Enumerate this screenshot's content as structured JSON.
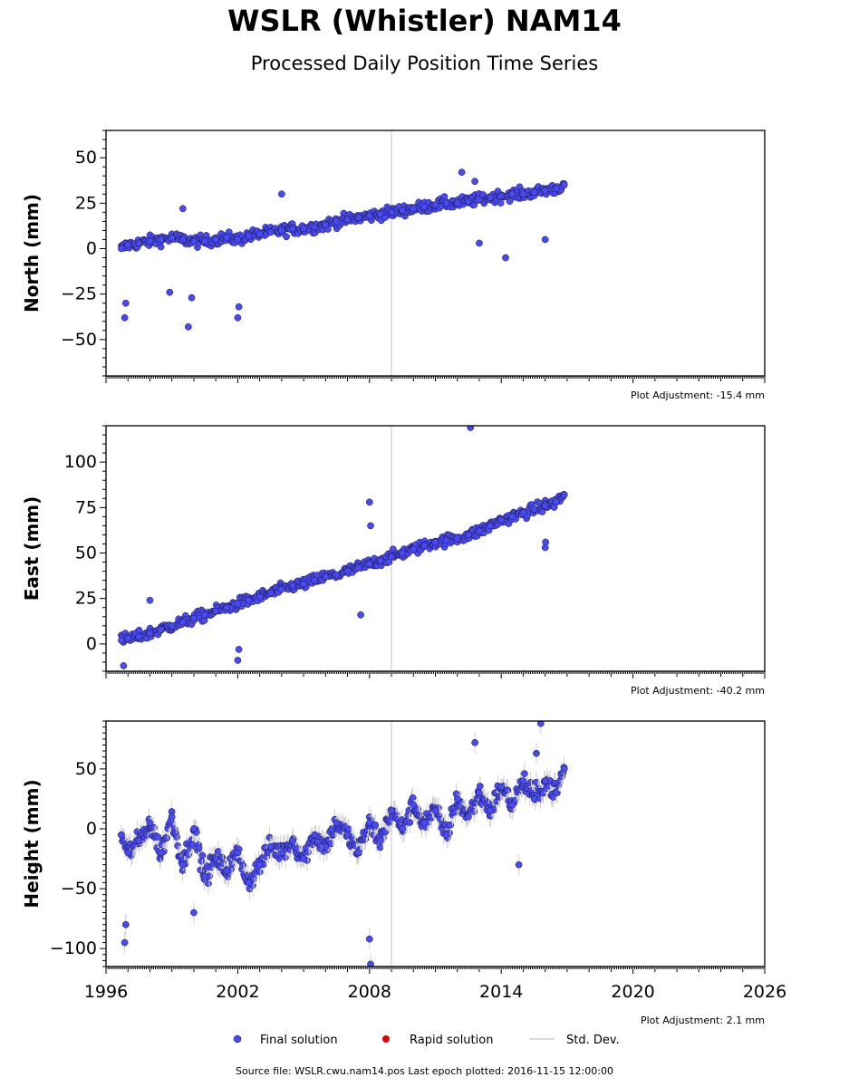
{
  "header": {
    "title": "WSLR (Whistler) NAM14",
    "subtitle": "Processed Daily Position Time Series"
  },
  "footer": {
    "source": "Source file: WSLR.cwu.nam14.pos  Last epoch plotted: 2016-11-15 12:00:00"
  },
  "legend": {
    "final": "Final solution",
    "rapid": "Rapid solution",
    "std": "Std. Dev.",
    "final_color": "#4a4af4",
    "rapid_color": "#e00000",
    "std_color": "#cfcfcf"
  },
  "chart_data": [
    {
      "type": "scatter",
      "component": "north",
      "ylabel": "North (mm)",
      "adjustment": "Plot Adjustment: -15.4 mm",
      "xlim": [
        1996,
        2026
      ],
      "ylim": [
        -70,
        65
      ],
      "yticks": [
        -50,
        -25,
        0,
        25,
        50
      ],
      "xticks": [
        1996,
        2002,
        2008,
        2014,
        2020,
        2026
      ],
      "x": [
        1996.7,
        1997.0,
        1997.5,
        1998.0,
        1998.5,
        1999.0,
        1999.5,
        2000.0,
        2000.5,
        2001.0,
        2001.5,
        2002.0,
        2002.5,
        2003.0,
        2003.5,
        2004.0,
        2004.5,
        2005.0,
        2005.5,
        2006.0,
        2006.5,
        2007.0,
        2007.5,
        2008.0,
        2008.5,
        2009.0,
        2009.5,
        2010.0,
        2010.5,
        2011.0,
        2011.5,
        2012.0,
        2012.5,
        2013.0,
        2013.5,
        2014.0,
        2014.5,
        2015.0,
        2015.5,
        2016.0,
        2016.5,
        2016.87
      ],
      "y": [
        0,
        2,
        3,
        4,
        5,
        6,
        5,
        4,
        4,
        5,
        6,
        5,
        7,
        8,
        9,
        10,
        11,
        11,
        12,
        13,
        15,
        16,
        17,
        18,
        19,
        20,
        21,
        22,
        23,
        24,
        25,
        25,
        26,
        27,
        28,
        29,
        30,
        30,
        31,
        32,
        33,
        35
      ],
      "outliers": [
        [
          1996.85,
          -38
        ],
        [
          1996.9,
          -30
        ],
        [
          1998.9,
          -24
        ],
        [
          1999.9,
          -27
        ],
        [
          1999.5,
          22
        ],
        [
          1999.75,
          -43
        ],
        [
          2002.0,
          -38
        ],
        [
          2002.05,
          -32
        ],
        [
          2004.0,
          30
        ],
        [
          2012.2,
          42
        ],
        [
          2012.8,
          37
        ],
        [
          2013.0,
          3
        ],
        [
          2014.2,
          -5
        ],
        [
          2016.0,
          5
        ]
      ]
    },
    {
      "type": "scatter",
      "component": "east",
      "ylabel": "East (mm)",
      "adjustment": "Plot Adjustment: -40.2 mm",
      "xlim": [
        1996,
        2026
      ],
      "ylim": [
        -15,
        120
      ],
      "yticks": [
        0,
        25,
        50,
        75,
        100
      ],
      "xticks": [
        1996,
        2002,
        2008,
        2014,
        2020,
        2026
      ],
      "x": [
        1996.7,
        1997.0,
        1997.5,
        1998.0,
        1998.5,
        1999.0,
        1999.5,
        2000.0,
        2000.5,
        2001.0,
        2001.5,
        2002.0,
        2002.5,
        2003.0,
        2003.5,
        2004.0,
        2004.5,
        2005.0,
        2005.5,
        2006.0,
        2006.5,
        2007.0,
        2007.5,
        2008.0,
        2008.5,
        2009.0,
        2009.5,
        2010.0,
        2010.5,
        2011.0,
        2011.5,
        2012.0,
        2012.5,
        2013.0,
        2013.5,
        2014.0,
        2014.5,
        2015.0,
        2015.5,
        2016.0,
        2016.5,
        2016.87
      ],
      "y": [
        2,
        3,
        4,
        6,
        8,
        10,
        12,
        14,
        16,
        18,
        20,
        22,
        24,
        26,
        28,
        30,
        32,
        33,
        35,
        37,
        38,
        40,
        42,
        44,
        46,
        48,
        50,
        52,
        54,
        56,
        57,
        58,
        60,
        62,
        65,
        68,
        70,
        72,
        74,
        76,
        78,
        82
      ],
      "outliers": [
        [
          1996.8,
          -12
        ],
        [
          1998.0,
          24
        ],
        [
          2002.0,
          -9
        ],
        [
          2002.05,
          -3
        ],
        [
          2007.6,
          16
        ],
        [
          2008.0,
          78
        ],
        [
          2008.05,
          65
        ],
        [
          2012.6,
          119
        ],
        [
          2016.0,
          53
        ],
        [
          2016.02,
          56
        ]
      ]
    },
    {
      "type": "scatter",
      "component": "height",
      "ylabel": "Height (mm)",
      "adjustment": "Plot Adjustment: 2.1 mm",
      "xlim": [
        1996,
        2026
      ],
      "ylim": [
        -115,
        90
      ],
      "yticks": [
        -100,
        -50,
        0,
        50
      ],
      "xticks": [
        1996,
        2002,
        2008,
        2014,
        2020,
        2026
      ],
      "x": [
        1996.7,
        1997.0,
        1997.5,
        1998.0,
        1998.5,
        1999.0,
        1999.5,
        2000.0,
        2000.5,
        2001.0,
        2001.5,
        2002.0,
        2002.5,
        2003.0,
        2003.5,
        2004.0,
        2004.5,
        2005.0,
        2005.5,
        2006.0,
        2006.5,
        2007.0,
        2007.5,
        2008.0,
        2008.5,
        2009.0,
        2009.5,
        2010.0,
        2010.5,
        2011.0,
        2011.5,
        2012.0,
        2012.5,
        2013.0,
        2013.5,
        2014.0,
        2014.5,
        2015.0,
        2015.5,
        2016.0,
        2016.5,
        2016.87
      ],
      "y": [
        -5,
        -20,
        -10,
        5,
        -20,
        10,
        -30,
        0,
        -40,
        -25,
        -35,
        -20,
        -45,
        -30,
        -15,
        -20,
        -10,
        -25,
        -5,
        -15,
        5,
        -5,
        -20,
        5,
        -10,
        15,
        0,
        20,
        5,
        15,
        -5,
        25,
        10,
        30,
        15,
        35,
        20,
        40,
        25,
        40,
        30,
        50
      ],
      "outliers": [
        [
          1996.85,
          -95
        ],
        [
          1996.9,
          -80
        ],
        [
          2000.0,
          -70
        ],
        [
          2008.0,
          -92
        ],
        [
          2008.05,
          -113
        ],
        [
          2012.8,
          72
        ],
        [
          2015.8,
          88
        ],
        [
          2015.6,
          63
        ],
        [
          2014.8,
          -30
        ]
      ]
    }
  ]
}
